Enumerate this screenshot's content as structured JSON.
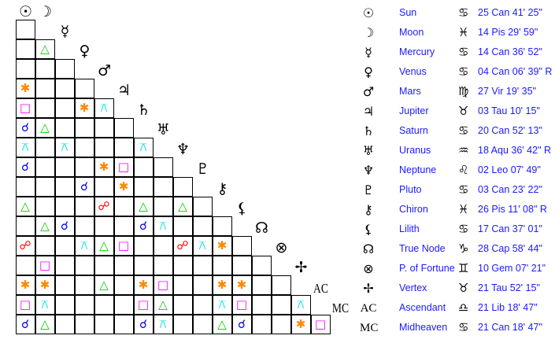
{
  "planets": [
    {
      "name": "Sun",
      "symbol": "☉",
      "sign": "♋",
      "position": "25 Can 41' 25\""
    },
    {
      "name": "Moon",
      "symbol": "☽",
      "sign": "♓",
      "position": "14 Pis 29' 59\""
    },
    {
      "name": "Mercury",
      "symbol": "☿",
      "sign": "♋",
      "position": "14 Can 36' 52\""
    },
    {
      "name": "Venus",
      "symbol": "♀",
      "sign": "♋",
      "position": "04 Can 06' 39\" R"
    },
    {
      "name": "Mars",
      "symbol": "♂",
      "sign": "♍",
      "position": "27 Vir 19' 35\""
    },
    {
      "name": "Jupiter",
      "symbol": "♃",
      "sign": "♉",
      "position": "03 Tau 10' 15\""
    },
    {
      "name": "Saturn",
      "symbol": "♄",
      "sign": "♋",
      "position": "20 Can 52' 13\""
    },
    {
      "name": "Uranus",
      "symbol": "♅",
      "sign": "♒",
      "position": "18 Aqu 36' 42\" R"
    },
    {
      "name": "Neptune",
      "symbol": "♆",
      "sign": "♌",
      "position": "02 Leo 07' 49\""
    },
    {
      "name": "Pluto",
      "symbol": "♇",
      "sign": "♋",
      "position": "03 Can 23' 22\""
    },
    {
      "name": "Chiron",
      "symbol": "⚷",
      "sign": "♓",
      "position": "26 Pis 11' 08\" R"
    },
    {
      "name": "Lilith",
      "symbol": "⚸",
      "sign": "♋",
      "position": "17 Can 37' 01\""
    },
    {
      "name": "True Node",
      "symbol": "☊",
      "sign": "♑",
      "position": "28 Cap 58' 44\""
    },
    {
      "name": "P. of Fortune",
      "symbol": "⊗",
      "sign": "♊",
      "position": "10 Gem 07' 21\""
    },
    {
      "name": "Vertex",
      "symbol": "✢",
      "sign": "♉",
      "position": "21 Tau 52' 15\""
    },
    {
      "name": "Ascendant",
      "symbol": "AC",
      "sign": "♎",
      "position": "21 Lib 18' 47\""
    },
    {
      "name": "Midheaven",
      "symbol": "MC",
      "sign": "♋",
      "position": "21 Can 18' 47\""
    }
  ],
  "aspect_types": {
    "conj": {
      "glyph": "☌",
      "color": "#0000ff"
    },
    "opp": {
      "glyph": "☍",
      "color": "#ff0000"
    },
    "tri": {
      "glyph": "△",
      "color": "#00cc00"
    },
    "sq": {
      "glyph": "□",
      "color": "#ff00ff"
    },
    "sxt": {
      "glyph": "✱",
      "color": "#ff8800"
    },
    "qcx": {
      "glyph": "⚻",
      "color": "#00e0e0"
    }
  },
  "aspect_grid": [
    [],
    [
      ""
    ],
    [
      "",
      "tri"
    ],
    [
      "",
      "",
      ""
    ],
    [
      "sxt",
      "",
      "",
      ""
    ],
    [
      "sq",
      "",
      "",
      "sxt",
      "qcx"
    ],
    [
      "conj",
      "tri",
      "",
      "",
      "",
      ""
    ],
    [
      "qcx",
      "",
      "qcx",
      "",
      "",
      "",
      "qcx"
    ],
    [
      "conj",
      "",
      "",
      "",
      "sxt",
      "sq",
      "",
      ""
    ],
    [
      "",
      "",
      "",
      "conj",
      "",
      "sxt",
      "",
      "",
      ""
    ],
    [
      "tri",
      "",
      "",
      "",
      "opp",
      "",
      "tri",
      "",
      "tri",
      ""
    ],
    [
      "",
      "tri",
      "conj",
      "",
      "",
      "",
      "conj",
      "qcx",
      "",
      "",
      ""
    ],
    [
      "opp",
      "",
      "",
      "qcx",
      "tri",
      "sq",
      "",
      "",
      "opp",
      "qcx",
      "sxt",
      ""
    ],
    [
      "",
      "sq",
      "",
      "",
      "",
      "",
      "",
      "",
      "",
      "",
      "",
      "",
      ""
    ],
    [
      "sxt",
      "sxt",
      "",
      "",
      "tri",
      "",
      "sxt",
      "sq",
      "",
      "",
      "sxt",
      "sxt",
      "",
      ""
    ],
    [
      "sq",
      "qcx",
      "",
      "",
      "",
      "",
      "sq",
      "tri",
      "",
      "",
      "qcx",
      "sq",
      "",
      "",
      "qcx"
    ],
    [
      "conj",
      "tri",
      "",
      "",
      "",
      "",
      "conj",
      "qcx",
      "",
      "",
      "tri",
      "conj",
      "",
      "",
      "sxt",
      "sq"
    ]
  ]
}
